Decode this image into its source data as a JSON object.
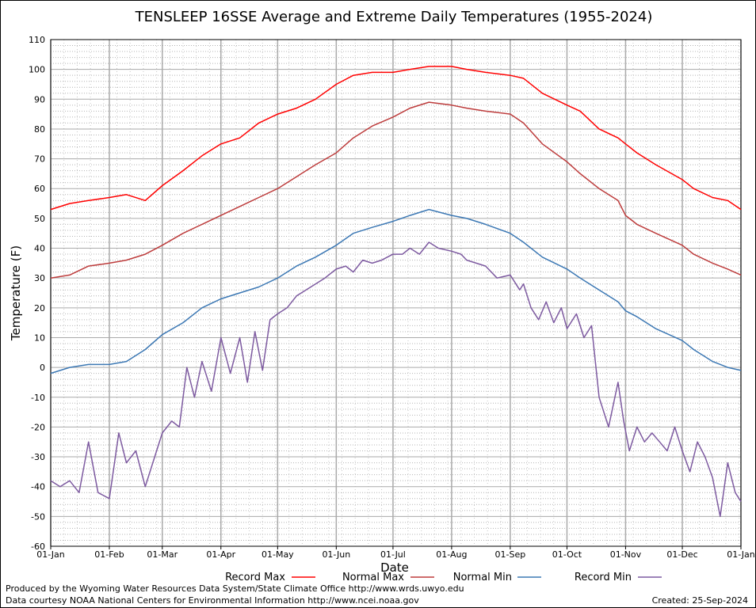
{
  "chart_data": {
    "type": "line",
    "title": "TENSLEEP 16SSE Average and Extreme Daily Temperatures (1955-2024)",
    "xlabel": "Date",
    "ylabel": "Temperature (F)",
    "ylim": [
      -60,
      110
    ],
    "yticks": [
      110,
      100,
      90,
      80,
      70,
      60,
      50,
      40,
      30,
      20,
      10,
      0,
      -10,
      -20,
      -30,
      -40,
      -50,
      -60
    ],
    "xlim": [
      0,
      365
    ],
    "xticks": [
      {
        "day": 0,
        "label": "01-Jan"
      },
      {
        "day": 31,
        "label": "01-Feb"
      },
      {
        "day": 59,
        "label": "01-Mar"
      },
      {
        "day": 90,
        "label": "01-Apr"
      },
      {
        "day": 120,
        "label": "01-May"
      },
      {
        "day": 151,
        "label": "01-Jun"
      },
      {
        "day": 181,
        "label": "01-Jul"
      },
      {
        "day": 212,
        "label": "01-Aug"
      },
      {
        "day": 243,
        "label": "01-Sep"
      },
      {
        "day": 273,
        "label": "01-Oct"
      },
      {
        "day": 304,
        "label": "01-Nov"
      },
      {
        "day": 334,
        "label": "01-Dec"
      },
      {
        "day": 365,
        "label": "01-Jan"
      }
    ],
    "grid": true,
    "legend_position": "bottom",
    "series": [
      {
        "name": "Record Max",
        "color": "#ff0000",
        "x": [
          0,
          10,
          20,
          31,
          40,
          50,
          59,
          70,
          80,
          90,
          100,
          110,
          120,
          130,
          140,
          151,
          160,
          170,
          181,
          190,
          200,
          212,
          220,
          230,
          243,
          250,
          260,
          273,
          280,
          290,
          300,
          304,
          310,
          320,
          334,
          340,
          350,
          358,
          365
        ],
        "y": [
          53,
          55,
          56,
          57,
          58,
          56,
          61,
          66,
          71,
          75,
          77,
          82,
          85,
          87,
          90,
          95,
          98,
          99,
          99,
          100,
          101,
          101,
          100,
          99,
          98,
          97,
          92,
          88,
          86,
          80,
          77,
          75,
          72,
          68,
          63,
          60,
          57,
          56,
          53
        ]
      },
      {
        "name": "Normal Max",
        "color": "#bd3c3c",
        "x": [
          0,
          10,
          20,
          31,
          40,
          50,
          59,
          70,
          80,
          90,
          100,
          110,
          120,
          130,
          140,
          151,
          160,
          170,
          181,
          190,
          200,
          212,
          220,
          230,
          243,
          250,
          260,
          273,
          280,
          290,
          300,
          304,
          310,
          320,
          334,
          340,
          350,
          358,
          365
        ],
        "y": [
          30,
          31,
          34,
          35,
          36,
          38,
          41,
          45,
          48,
          51,
          54,
          57,
          60,
          64,
          68,
          72,
          77,
          81,
          84,
          87,
          89,
          88,
          87,
          86,
          85,
          82,
          75,
          69,
          65,
          60,
          56,
          51,
          48,
          45,
          41,
          38,
          35,
          33,
          31
        ]
      },
      {
        "name": "Normal Min",
        "color": "#3c78b4",
        "x": [
          0,
          10,
          20,
          31,
          40,
          50,
          59,
          70,
          80,
          90,
          100,
          110,
          120,
          130,
          140,
          151,
          160,
          170,
          181,
          190,
          200,
          212,
          220,
          230,
          243,
          250,
          260,
          273,
          280,
          290,
          300,
          304,
          310,
          320,
          334,
          340,
          350,
          358,
          365
        ],
        "y": [
          -2,
          0,
          1,
          1,
          2,
          6,
          11,
          15,
          20,
          23,
          25,
          27,
          30,
          34,
          37,
          41,
          45,
          47,
          49,
          51,
          53,
          51,
          50,
          48,
          45,
          42,
          37,
          33,
          30,
          26,
          22,
          19,
          17,
          13,
          9,
          6,
          2,
          0,
          -1
        ]
      },
      {
        "name": "Record Min",
        "color": "#7d5aa0",
        "x": [
          0,
          5,
          10,
          15,
          20,
          25,
          31,
          36,
          40,
          45,
          50,
          55,
          59,
          64,
          68,
          72,
          76,
          80,
          85,
          90,
          95,
          100,
          104,
          108,
          112,
          116,
          120,
          125,
          130,
          135,
          140,
          145,
          151,
          156,
          160,
          165,
          170,
          175,
          181,
          186,
          190,
          195,
          200,
          205,
          212,
          217,
          220,
          225,
          230,
          236,
          243,
          248,
          250,
          254,
          258,
          262,
          266,
          270,
          273,
          278,
          282,
          286,
          290,
          295,
          300,
          303,
          306,
          310,
          314,
          318,
          322,
          326,
          330,
          334,
          338,
          342,
          346,
          350,
          354,
          358,
          362,
          365
        ],
        "y": [
          -38,
          -40,
          -38,
          -42,
          -25,
          -42,
          -44,
          -22,
          -32,
          -28,
          -40,
          -30,
          -22,
          -18,
          -20,
          0,
          -10,
          2,
          -8,
          10,
          -2,
          10,
          -5,
          12,
          -1,
          16,
          18,
          20,
          24,
          26,
          28,
          30,
          33,
          34,
          32,
          36,
          35,
          36,
          38,
          38,
          40,
          38,
          42,
          40,
          39,
          38,
          36,
          35,
          34,
          30,
          31,
          26,
          28,
          20,
          16,
          22,
          15,
          20,
          13,
          18,
          10,
          14,
          -10,
          -20,
          -5,
          -18,
          -28,
          -20,
          -25,
          -22,
          -25,
          -28,
          -20,
          -28,
          -35,
          -25,
          -30,
          -37,
          -50,
          -32,
          -42,
          -45
        ]
      }
    ]
  },
  "footer": {
    "credit_line_1": "Produced by the Wyoming Water Resources Data System/State Climate Office http://www.wrds.uwyo.edu",
    "credit_line_2": "Data courtesy NOAA National Centers for Environmental Information http://www.ncei.noaa.gov",
    "created": "Created:  25-Sep-2024"
  }
}
